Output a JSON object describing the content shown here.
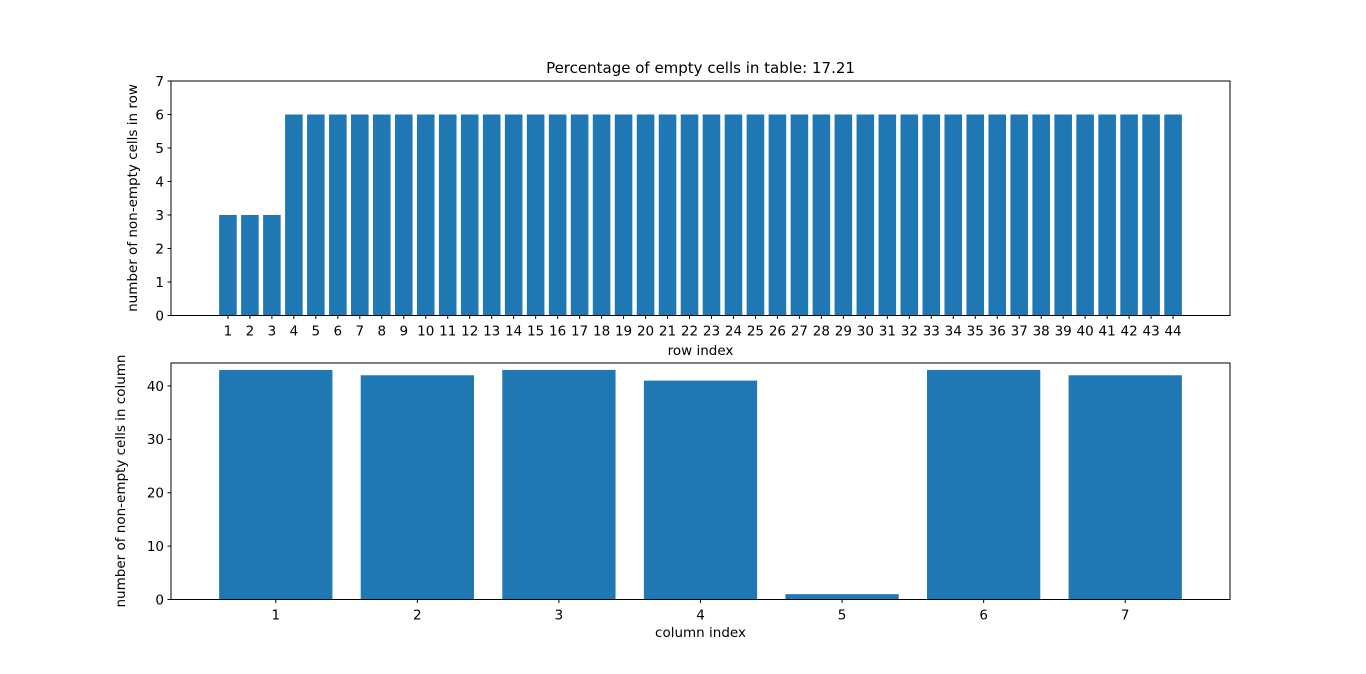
{
  "figure": {
    "background": "#ffffff",
    "bar_color": "#1f77b4",
    "spine_color": "#000000",
    "text_color": "#000000"
  },
  "chart_data": [
    {
      "type": "bar",
      "title": "Percentage of empty cells in table: 17.21",
      "xlabel": "row index",
      "ylabel": "number of non-empty cells in row",
      "categories": [
        1,
        2,
        3,
        4,
        5,
        6,
        7,
        8,
        9,
        10,
        11,
        12,
        13,
        14,
        15,
        16,
        17,
        18,
        19,
        20,
        21,
        22,
        23,
        24,
        25,
        26,
        27,
        28,
        29,
        30,
        31,
        32,
        33,
        34,
        35,
        36,
        37,
        38,
        39,
        40,
        41,
        42,
        43,
        44
      ],
      "values": [
        3,
        3,
        3,
        6,
        6,
        6,
        6,
        6,
        6,
        6,
        6,
        6,
        6,
        6,
        6,
        6,
        6,
        6,
        6,
        6,
        6,
        6,
        6,
        6,
        6,
        6,
        6,
        6,
        6,
        6,
        6,
        6,
        6,
        6,
        6,
        6,
        6,
        6,
        6,
        6,
        6,
        6,
        6,
        6
      ],
      "ylim": [
        0,
        7
      ],
      "yticks": [
        0,
        1,
        2,
        3,
        4,
        5,
        6,
        7
      ],
      "xlim": [
        -1.59,
        46.59
      ],
      "bar_width": 0.8,
      "grid": false,
      "legend": null
    },
    {
      "type": "bar",
      "title": "",
      "xlabel": "column index",
      "ylabel": "number of non-empty cells in column",
      "categories": [
        1,
        2,
        3,
        4,
        5,
        6,
        7
      ],
      "values": [
        43,
        42,
        43,
        41,
        1,
        43,
        42
      ],
      "ylim": [
        0,
        44.3
      ],
      "yticks": [
        0,
        10,
        20,
        30,
        40
      ],
      "xlim": [
        0.26,
        7.74
      ],
      "bar_width": 0.8,
      "grid": false,
      "legend": null
    }
  ]
}
